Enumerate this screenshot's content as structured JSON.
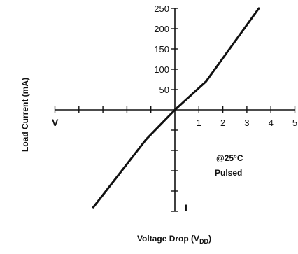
{
  "chart_data": {
    "type": "line",
    "title": "",
    "xlabel": "Voltage Drop (VDD)",
    "xlabel_main": "Voltage Drop (V",
    "xlabel_sub": "DD",
    "xlabel_close": ")",
    "ylabel": "Load Current (mA)",
    "xlim": [
      -5,
      5
    ],
    "ylim": [
      -250,
      250
    ],
    "x_ticks": [
      -5,
      -4,
      -3,
      -2,
      -1,
      0,
      1,
      2,
      3,
      4,
      5
    ],
    "x_tick_labels": [
      {
        "value": 1,
        "label": "1"
      },
      {
        "value": 2,
        "label": "2"
      },
      {
        "value": 3,
        "label": "3"
      },
      {
        "value": 4,
        "label": "4"
      },
      {
        "value": 5,
        "label": "5"
      }
    ],
    "y_ticks": [
      -250,
      -200,
      -150,
      -100,
      -50,
      0,
      50,
      100,
      150,
      200,
      250
    ],
    "y_tick_labels": [
      {
        "value": 50,
        "label": "50"
      },
      {
        "value": 100,
        "label": "100"
      },
      {
        "value": 150,
        "label": "150"
      },
      {
        "value": 200,
        "label": "200"
      },
      {
        "value": 250,
        "label": "250"
      }
    ],
    "axis_end_labels": {
      "negative_x": "V",
      "negative_y": "I"
    },
    "annotations": [
      "@25°C",
      "Pulsed"
    ],
    "grid": false,
    "series": [
      {
        "x": [
          -3.4,
          -1.2,
          0,
          1.3,
          3.5
        ],
        "y": [
          -240,
          -73,
          0,
          70,
          250
        ]
      }
    ]
  }
}
